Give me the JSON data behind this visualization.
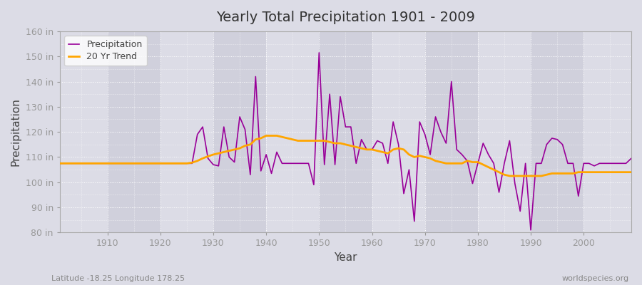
{
  "title": "Yearly Total Precipitation 1901 - 2009",
  "xlabel": "Year",
  "ylabel": "Precipitation",
  "lat_lon_label": "Latitude -18.25 Longitude 178.25",
  "source_label": "worldspecies.org",
  "ylim": [
    80,
    160
  ],
  "yticks": [
    80,
    90,
    100,
    110,
    120,
    130,
    140,
    150,
    160
  ],
  "ytick_labels": [
    "80 in",
    "90 in",
    "100 in",
    "110 in",
    "120 in",
    "130 in",
    "140 in",
    "150 in",
    "160 in"
  ],
  "xlim": [
    1901,
    2009
  ],
  "xticks": [
    1910,
    1920,
    1930,
    1940,
    1950,
    1960,
    1970,
    1980,
    1990,
    2000
  ],
  "precip_color": "#990099",
  "trend_color": "#FFA500",
  "bg_color": "#DCDCE6",
  "plot_bg_color": "#DCDCE6",
  "grid_color": "#FFFFFF",
  "alt_band_color": "#D0D0DC",
  "years": [
    1901,
    1902,
    1903,
    1904,
    1905,
    1906,
    1907,
    1908,
    1909,
    1910,
    1911,
    1912,
    1913,
    1914,
    1915,
    1916,
    1917,
    1918,
    1919,
    1920,
    1921,
    1922,
    1923,
    1924,
    1925,
    1926,
    1927,
    1928,
    1929,
    1930,
    1931,
    1932,
    1933,
    1934,
    1935,
    1936,
    1937,
    1938,
    1939,
    1940,
    1941,
    1942,
    1943,
    1944,
    1945,
    1946,
    1947,
    1948,
    1949,
    1950,
    1951,
    1952,
    1953,
    1954,
    1955,
    1956,
    1957,
    1958,
    1959,
    1960,
    1961,
    1962,
    1963,
    1964,
    1965,
    1966,
    1967,
    1968,
    1969,
    1970,
    1971,
    1972,
    1973,
    1974,
    1975,
    1976,
    1977,
    1978,
    1979,
    1980,
    1981,
    1982,
    1983,
    1984,
    1985,
    1986,
    1987,
    1988,
    1989,
    1990,
    1991,
    1992,
    1993,
    1994,
    1995,
    1996,
    1997,
    1998,
    1999,
    2000,
    2001,
    2002,
    2003,
    2004,
    2005,
    2006,
    2007,
    2008,
    2009
  ],
  "precip": [
    107.5,
    107.5,
    107.5,
    107.5,
    107.5,
    107.5,
    107.5,
    107.5,
    107.5,
    107.5,
    107.5,
    107.5,
    107.5,
    107.5,
    107.5,
    107.5,
    107.5,
    107.5,
    107.5,
    107.5,
    107.5,
    107.5,
    107.5,
    107.5,
    107.5,
    107.5,
    119.0,
    122.0,
    109.5,
    107.0,
    106.5,
    122.0,
    110.0,
    108.0,
    126.0,
    121.0,
    103.0,
    142.0,
    104.5,
    111.0,
    103.5,
    112.0,
    107.5,
    107.5,
    107.5,
    107.5,
    107.5,
    107.5,
    99.0,
    151.5,
    107.0,
    135.0,
    107.0,
    134.0,
    122.0,
    122.0,
    107.5,
    117.0,
    113.0,
    113.0,
    116.5,
    115.5,
    107.5,
    124.0,
    115.0,
    95.5,
    105.0,
    84.5,
    124.0,
    119.0,
    111.0,
    126.0,
    120.0,
    115.5,
    140.0,
    113.0,
    111.0,
    108.5,
    99.5,
    107.5,
    115.5,
    111.0,
    107.5,
    96.0,
    107.5,
    116.5,
    99.5,
    88.5,
    107.5,
    81.0,
    107.5,
    107.5,
    115.0,
    117.5,
    117.0,
    115.0,
    107.5,
    107.5,
    94.5,
    107.5,
    107.5,
    106.5,
    107.5,
    107.5,
    107.5,
    107.5,
    107.5,
    107.5,
    109.5
  ],
  "trend": [
    107.5,
    107.5,
    107.5,
    107.5,
    107.5,
    107.5,
    107.5,
    107.5,
    107.5,
    107.5,
    107.5,
    107.5,
    107.5,
    107.5,
    107.5,
    107.5,
    107.5,
    107.5,
    107.5,
    107.5,
    107.5,
    107.5,
    107.5,
    107.5,
    107.5,
    107.8,
    108.5,
    109.5,
    110.3,
    111.0,
    111.5,
    112.0,
    112.5,
    113.0,
    113.5,
    114.5,
    115.0,
    117.0,
    117.5,
    118.5,
    118.5,
    118.5,
    118.0,
    117.5,
    117.0,
    116.5,
    116.5,
    116.5,
    116.5,
    116.5,
    116.5,
    116.0,
    115.5,
    115.5,
    115.0,
    114.5,
    114.0,
    113.5,
    113.0,
    113.0,
    112.5,
    112.0,
    111.5,
    113.0,
    113.5,
    113.0,
    111.0,
    110.0,
    110.5,
    110.0,
    109.5,
    108.5,
    108.0,
    107.5,
    107.5,
    107.5,
    107.5,
    108.5,
    108.0,
    108.0,
    107.0,
    106.0,
    105.0,
    104.0,
    103.0,
    102.5,
    102.5,
    102.5,
    102.5,
    102.5,
    102.5,
    102.5,
    103.0,
    103.5,
    103.5,
    103.5,
    103.5,
    103.5,
    104.0,
    104.0,
    104.0,
    104.0,
    104.0,
    104.0,
    104.0,
    104.0,
    104.0,
    104.0,
    104.0
  ]
}
